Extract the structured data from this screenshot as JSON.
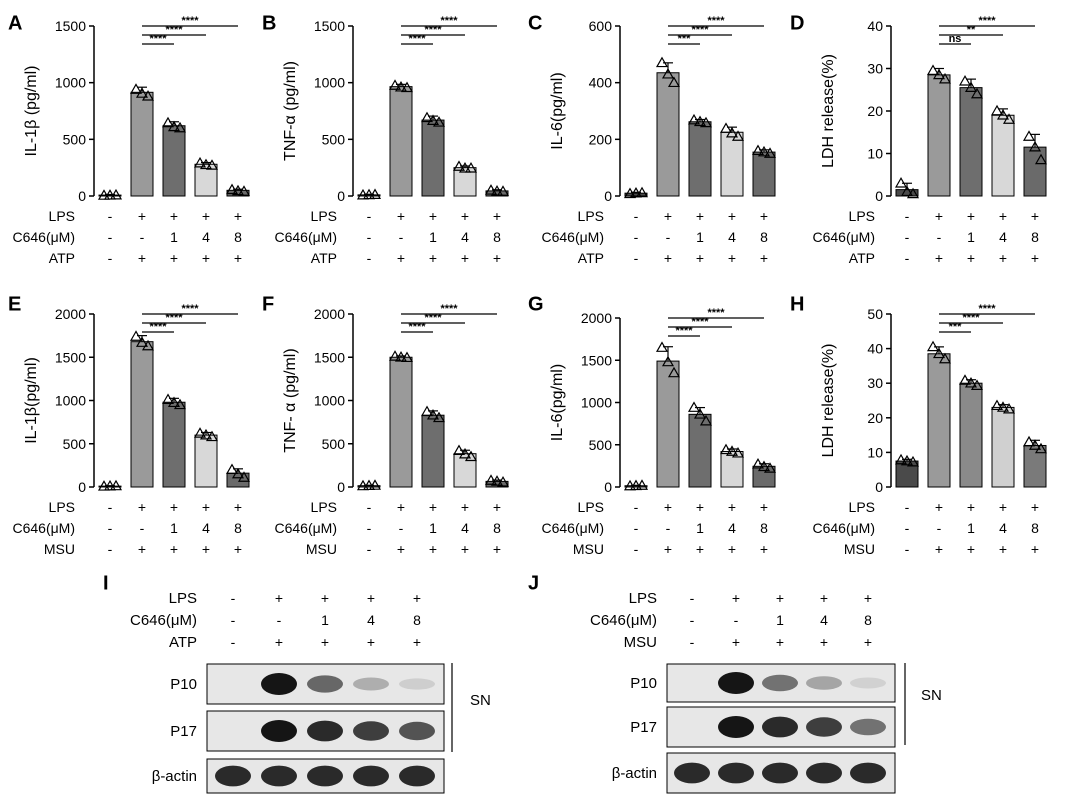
{
  "figure": {
    "colors": {
      "bar_ctrl": "#4a4a4a",
      "bar_lps": "#9a9a9a",
      "bar_c1": "#6e6e6e",
      "bar_c4": "#d8d8d8",
      "bar_c8": "#6a6a6a"
    }
  },
  "chart_data": [
    {
      "letter": "A",
      "type": "bar",
      "ylabel": "IL-1β (pg/ml)",
      "ylim": [
        0,
        1500
      ],
      "yticks": [
        0,
        500,
        1000,
        1500
      ],
      "values": [
        8,
        915,
        620,
        280,
        50
      ],
      "errors": [
        5,
        45,
        35,
        15,
        10
      ],
      "points": [
        [
          5,
          6,
          8
        ],
        [
          940,
          905,
          880
        ],
        [
          645,
          610,
          600
        ],
        [
          290,
          275,
          270
        ],
        [
          55,
          45,
          40
        ]
      ],
      "sig": [
        {
          "to": 2,
          "label": "****"
        },
        {
          "to": 3,
          "label": "****"
        },
        {
          "to": 4,
          "label": "****"
        }
      ],
      "conditions": [
        {
          "name": "LPS",
          "marks": [
            "-",
            "+",
            "+",
            "+",
            "+"
          ]
        },
        {
          "name": "C646(μM)",
          "marks": [
            "-",
            "-",
            "1",
            "4",
            "8"
          ]
        },
        {
          "name": "ATP",
          "marks": [
            "-",
            "+",
            "+",
            "+",
            "+"
          ]
        }
      ]
    },
    {
      "letter": "B",
      "type": "bar",
      "ylabel": "TNF-α (pg/ml)",
      "ylim": [
        0,
        1500
      ],
      "yticks": [
        0,
        500,
        1000,
        1500
      ],
      "values": [
        10,
        965,
        670,
        250,
        45
      ],
      "errors": [
        5,
        20,
        35,
        15,
        10
      ],
      "points": [
        [
          8,
          10,
          12
        ],
        [
          975,
          960,
          955
        ],
        [
          690,
          665,
          650
        ],
        [
          260,
          245,
          245
        ],
        [
          50,
          42,
          40
        ]
      ],
      "sig": [
        {
          "to": 2,
          "label": "****"
        },
        {
          "to": 3,
          "label": "****"
        },
        {
          "to": 4,
          "label": "****"
        }
      ],
      "conditions": [
        {
          "name": "LPS",
          "marks": [
            "-",
            "+",
            "+",
            "+",
            "+"
          ]
        },
        {
          "name": "C646(μM)",
          "marks": [
            "-",
            "-",
            "1",
            "4",
            "8"
          ]
        },
        {
          "name": "ATP",
          "marks": [
            "-",
            "+",
            "+",
            "+",
            "+"
          ]
        }
      ]
    },
    {
      "letter": "C",
      "type": "bar",
      "ylabel": "IL-6(pg/ml)",
      "ylim": [
        0,
        600
      ],
      "yticks": [
        0,
        200,
        400,
        600
      ],
      "values": [
        10,
        435,
        262,
        225,
        155
      ],
      "errors": [
        3,
        35,
        8,
        18,
        8
      ],
      "points": [
        [
          8,
          10,
          11
        ],
        [
          470,
          430,
          400
        ],
        [
          268,
          262,
          258
        ],
        [
          238,
          222,
          210
        ],
        [
          160,
          155,
          150
        ]
      ],
      "sig": [
        {
          "to": 2,
          "label": "***"
        },
        {
          "to": 3,
          "label": "****"
        },
        {
          "to": 4,
          "label": "****"
        }
      ],
      "conditions": [
        {
          "name": "LPS",
          "marks": [
            "-",
            "+",
            "+",
            "+",
            "+"
          ]
        },
        {
          "name": "C646(μM)",
          "marks": [
            "-",
            "-",
            "1",
            "4",
            "8"
          ]
        },
        {
          "name": "ATP",
          "marks": [
            "-",
            "+",
            "+",
            "+",
            "+"
          ]
        }
      ]
    },
    {
      "letter": "D",
      "type": "bar",
      "ylabel": "LDH release(%)",
      "ylim": [
        0,
        40
      ],
      "yticks": [
        0,
        10,
        20,
        30,
        40
      ],
      "values": [
        1.5,
        28.5,
        25.5,
        19,
        11.5
      ],
      "errors": [
        1.5,
        1.5,
        2,
        1.5,
        3
      ],
      "points": [
        [
          3,
          1,
          0.5
        ],
        [
          29.5,
          28.5,
          27.5
        ],
        [
          27,
          25.5,
          24
        ],
        [
          20,
          19,
          18
        ],
        [
          14,
          11.5,
          8.5
        ]
      ],
      "sig": [
        {
          "to": 2,
          "label": "ns"
        },
        {
          "to": 3,
          "label": "**"
        },
        {
          "to": 4,
          "label": "****"
        }
      ],
      "conditions": [
        {
          "name": "LPS",
          "marks": [
            "-",
            "+",
            "+",
            "+",
            "+"
          ]
        },
        {
          "name": "C646(μM)",
          "marks": [
            "-",
            "-",
            "1",
            "4",
            "8"
          ]
        },
        {
          "name": "ATP",
          "marks": [
            "-",
            "+",
            "+",
            "+",
            "+"
          ]
        }
      ]
    },
    {
      "letter": "E",
      "type": "bar",
      "ylabel": "IL-1β(pg/ml)",
      "ylim": [
        0,
        2000
      ],
      "yticks": [
        0,
        500,
        1000,
        1500,
        2000
      ],
      "values": [
        10,
        1680,
        980,
        600,
        160
      ],
      "errors": [
        5,
        70,
        45,
        30,
        50
      ],
      "points": [
        [
          8,
          10,
          12
        ],
        [
          1740,
          1670,
          1630
        ],
        [
          1010,
          975,
          950
        ],
        [
          620,
          600,
          580
        ],
        [
          200,
          150,
          110
        ]
      ],
      "sig": [
        {
          "to": 2,
          "label": "****"
        },
        {
          "to": 3,
          "label": "****"
        },
        {
          "to": 4,
          "label": "****"
        }
      ],
      "conditions": [
        {
          "name": "LPS",
          "marks": [
            "-",
            "+",
            "+",
            "+",
            "+"
          ]
        },
        {
          "name": "C646(μM)",
          "marks": [
            "-",
            "-",
            "1",
            "4",
            "8"
          ]
        },
        {
          "name": "MSU",
          "marks": [
            "-",
            "+",
            "+",
            "+",
            "+"
          ]
        }
      ]
    },
    {
      "letter": "F",
      "type": "bar",
      "ylabel": "TNF- α (pg/ml)",
      "ylim": [
        0,
        2000
      ],
      "yticks": [
        0,
        500,
        1000,
        1500,
        2000
      ],
      "values": [
        15,
        1500,
        830,
        385,
        65
      ],
      "errors": [
        5,
        15,
        50,
        40,
        15
      ],
      "points": [
        [
          12,
          15,
          18
        ],
        [
          1510,
          1500,
          1495
        ],
        [
          870,
          830,
          800
        ],
        [
          420,
          380,
          350
        ],
        [
          75,
          65,
          55
        ]
      ],
      "sig": [
        {
          "to": 2,
          "label": "****"
        },
        {
          "to": 3,
          "label": "****"
        },
        {
          "to": 4,
          "label": "****"
        }
      ],
      "conditions": [
        {
          "name": "LPS",
          "marks": [
            "-",
            "+",
            "+",
            "+",
            "+"
          ]
        },
        {
          "name": "C646(μM)",
          "marks": [
            "-",
            "-",
            "1",
            "4",
            "8"
          ]
        },
        {
          "name": "MSU",
          "marks": [
            "-",
            "+",
            "+",
            "+",
            "+"
          ]
        }
      ]
    },
    {
      "letter": "G",
      "type": "bar",
      "ylabel": "IL-6(pg/ml)",
      "ylim": [
        0,
        2000
      ],
      "yticks": [
        0,
        500,
        1000,
        1500,
        2000
      ],
      "values": [
        15,
        1490,
        860,
        420,
        245
      ],
      "errors": [
        5,
        170,
        80,
        30,
        30
      ],
      "points": [
        [
          12,
          15,
          18
        ],
        [
          1650,
          1480,
          1350
        ],
        [
          940,
          860,
          780
        ],
        [
          440,
          420,
          400
        ],
        [
          270,
          240,
          220
        ]
      ],
      "sig": [
        {
          "to": 2,
          "label": "****"
        },
        {
          "to": 3,
          "label": "****"
        },
        {
          "to": 4,
          "label": "****"
        }
      ],
      "conditions": [
        {
          "name": "LPS",
          "marks": [
            "-",
            "+",
            "+",
            "+",
            "+"
          ]
        },
        {
          "name": "C646(μM)",
          "marks": [
            "-",
            "-",
            "1",
            "4",
            "8"
          ]
        },
        {
          "name": "MSU",
          "marks": [
            "-",
            "+",
            "+",
            "+",
            "+"
          ]
        }
      ]
    },
    {
      "letter": "H",
      "type": "bar",
      "ylabel": "LDH release(%)",
      "ylim": [
        0,
        50
      ],
      "yticks": [
        0,
        10,
        20,
        30,
        40,
        50
      ],
      "values": [
        7.5,
        38.5,
        30,
        23,
        12
      ],
      "errors": [
        0.5,
        2,
        1,
        0.8,
        1.5
      ],
      "points": [
        [
          7.8,
          7.5,
          7.2
        ],
        [
          40.5,
          38.5,
          37
        ],
        [
          30.8,
          30,
          29.3
        ],
        [
          23.5,
          23,
          22.5
        ],
        [
          13,
          12,
          11
        ]
      ],
      "sig": [
        {
          "to": 2,
          "label": "***"
        },
        {
          "to": 3,
          "label": "****"
        },
        {
          "to": 4,
          "label": "****"
        }
      ],
      "conditions": [
        {
          "name": "LPS",
          "marks": [
            "-",
            "+",
            "+",
            "+",
            "+"
          ]
        },
        {
          "name": "C646(μM)",
          "marks": [
            "-",
            "-",
            "1",
            "4",
            "8"
          ]
        },
        {
          "name": "MSU",
          "marks": [
            "-",
            "+",
            "+",
            "+",
            "+"
          ]
        }
      ]
    }
  ],
  "blots": [
    {
      "letter": "I",
      "conditions": [
        {
          "name": "LPS",
          "marks": [
            "-",
            "+",
            "+",
            "+",
            "+"
          ]
        },
        {
          "name": "C646(μM)",
          "marks": [
            "-",
            "-",
            "1",
            "4",
            "8"
          ]
        },
        {
          "name": "ATP",
          "marks": [
            "-",
            "+",
            "+",
            "+",
            "+"
          ]
        }
      ],
      "rows": [
        {
          "label": "P10",
          "intensity": [
            0,
            1.0,
            0.6,
            0.25,
            0.1
          ]
        },
        {
          "label": "P17",
          "intensity": [
            0,
            1.0,
            0.9,
            0.8,
            0.7
          ]
        },
        {
          "label": "β-actin",
          "intensity": [
            0.9,
            0.9,
            0.9,
            0.9,
            0.9
          ]
        }
      ],
      "bracket_label": "SN"
    },
    {
      "letter": "J",
      "conditions": [
        {
          "name": "LPS",
          "marks": [
            "-",
            "+",
            "+",
            "+",
            "+"
          ]
        },
        {
          "name": "C646(μM)",
          "marks": [
            "-",
            "-",
            "1",
            "4",
            "8"
          ]
        },
        {
          "name": "MSU",
          "marks": [
            "-",
            "+",
            "+",
            "+",
            "+"
          ]
        }
      ],
      "rows": [
        {
          "label": "P10",
          "intensity": [
            0,
            1.0,
            0.55,
            0.3,
            0.08
          ]
        },
        {
          "label": "P17",
          "intensity": [
            0,
            1.0,
            0.9,
            0.8,
            0.55
          ]
        },
        {
          "label": "β-actin",
          "intensity": [
            0.9,
            0.9,
            0.9,
            0.9,
            0.9
          ]
        }
      ],
      "bracket_label": "SN"
    }
  ]
}
